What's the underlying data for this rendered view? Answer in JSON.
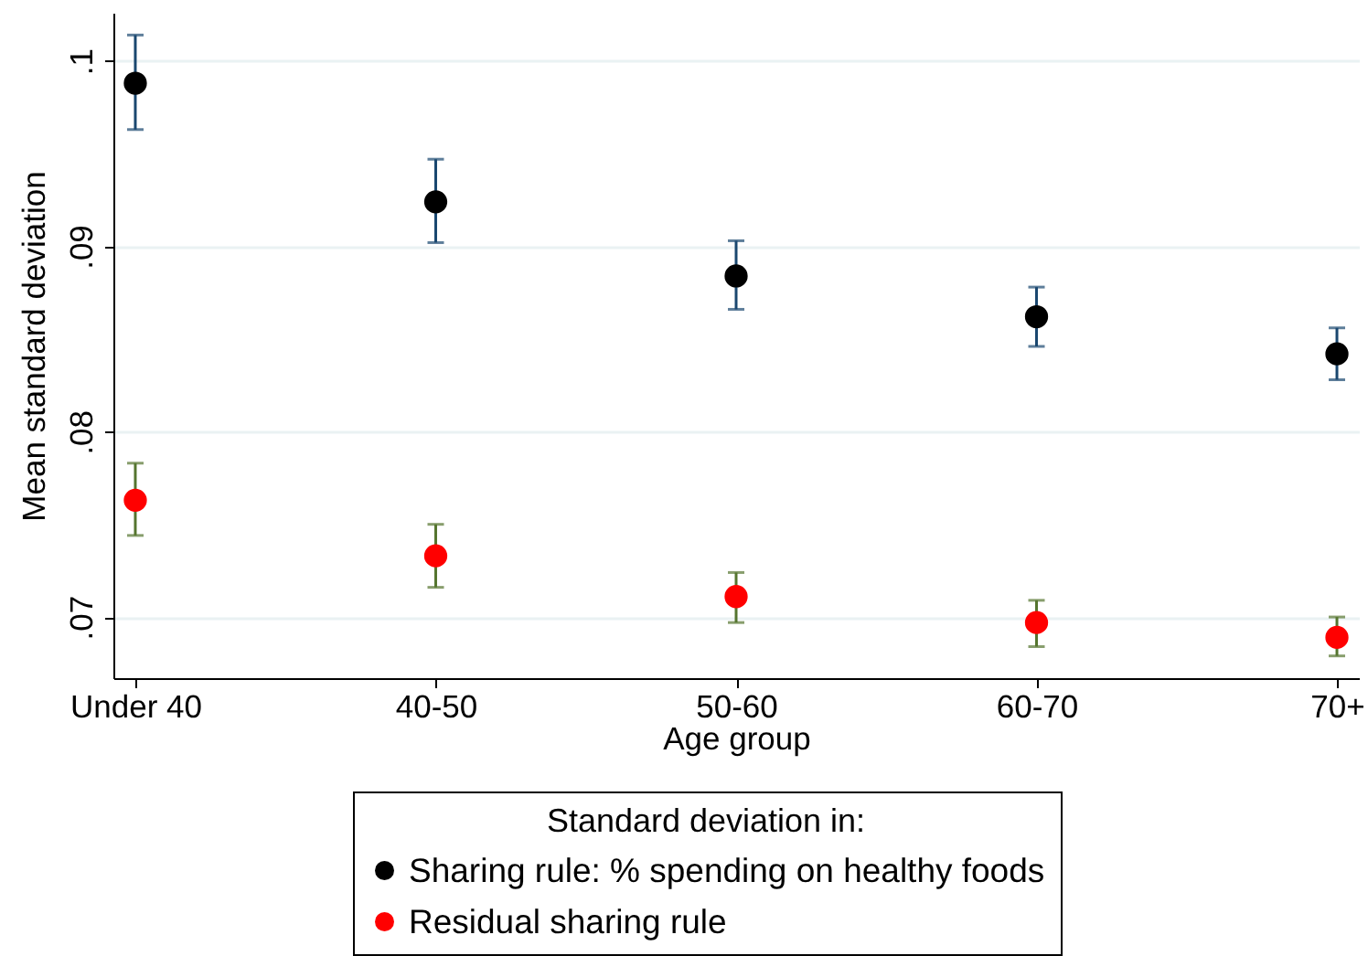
{
  "chart_data": {
    "type": "scatter",
    "xlabel": "Age group",
    "ylabel": "Mean standard deviation",
    "legend_title": "Standard deviation in:",
    "categories": [
      "Under 40",
      "40-50",
      "50-60",
      "60-70",
      "70+"
    ],
    "ylim": [
      0.0667,
      0.1026
    ],
    "yticks": [
      {
        "value": 0.07,
        "label": ".07"
      },
      {
        "value": 0.08,
        "label": ".08"
      },
      {
        "value": 0.09,
        "label": ".09"
      },
      {
        "value": 0.1,
        "label": ".1"
      }
    ],
    "grid": "y",
    "legend": "bottom",
    "marker": "circle",
    "series": [
      {
        "name": "Sharing rule: % spending on healthy foods",
        "color": "#000000",
        "values": [
          0.0988,
          0.0924,
          0.0884,
          0.0862,
          0.0842
        ],
        "errors": [
          [
            0.0963,
            0.1014
          ],
          [
            0.0902,
            0.0947
          ],
          [
            0.0866,
            0.0903
          ],
          [
            0.0846,
            0.0878
          ],
          [
            0.0828,
            0.0856
          ]
        ]
      },
      {
        "name": "Residual sharing rule",
        "color": "#ff0000",
        "values": [
          0.0763,
          0.0733,
          0.0711,
          0.0697,
          0.0689
        ],
        "errors": [
          [
            0.0744,
            0.0783
          ],
          [
            0.0716,
            0.075
          ],
          [
            0.0697,
            0.0724
          ],
          [
            0.0684,
            0.0709
          ],
          [
            0.0679,
            0.07
          ]
        ]
      }
    ]
  }
}
